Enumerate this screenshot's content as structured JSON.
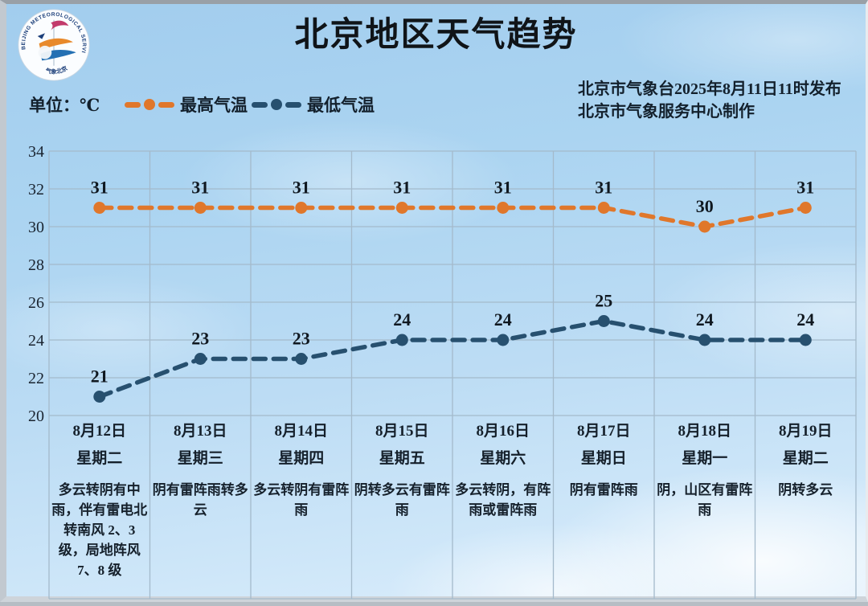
{
  "header": {
    "title": "北京地区天气趋势",
    "issue_line1": "北京市气象台2025年8月11日11时发布",
    "issue_line2": "北京市气象服务中心制作",
    "logo": {
      "ring_text": "BEIJING METEOROLOGICAL SERVICE",
      "bottom_text": "气象北京"
    }
  },
  "legend": {
    "unit_label": "单位：℃",
    "position": "top-left",
    "series": [
      {
        "label": "最高气温",
        "color": "#e0772b"
      },
      {
        "label": "最低气温",
        "color": "#27506f"
      }
    ]
  },
  "chart_data": {
    "type": "line",
    "title": "北京地区天气趋势",
    "x": [
      "8月12日",
      "8月13日",
      "8月14日",
      "8月15日",
      "8月16日",
      "8月17日",
      "8月18日",
      "8月19日"
    ],
    "weekdays": [
      "星期二",
      "星期三",
      "星期四",
      "星期五",
      "星期六",
      "星期日",
      "星期一",
      "星期二"
    ],
    "weather": [
      "多云转阴有中雨，伴有雷电北转南风 2、3 级，局地阵风 7、8 级",
      "阴有雷阵雨转多云",
      "多云转阴有雷阵雨",
      "阴转多云有雷阵雨",
      "多云转阴，有阵雨或雷阵雨",
      "阴有雷阵雨",
      "阴，山区有雷阵雨",
      "阴转多云"
    ],
    "series": [
      {
        "name": "最高气温",
        "values": [
          31,
          31,
          31,
          31,
          31,
          31,
          30,
          31
        ],
        "color": "#e0772b",
        "style": "dashed"
      },
      {
        "name": "最低气温",
        "values": [
          21,
          23,
          23,
          24,
          24,
          25,
          24,
          24
        ],
        "color": "#27506f",
        "style": "dashed"
      }
    ],
    "ylabel": "℃",
    "ylim": [
      20,
      34
    ],
    "yticks": [
      20,
      22,
      24,
      26,
      28,
      30,
      32,
      34
    ],
    "grid": true,
    "gridline_color": "#a4bacb",
    "value_labels": true
  }
}
